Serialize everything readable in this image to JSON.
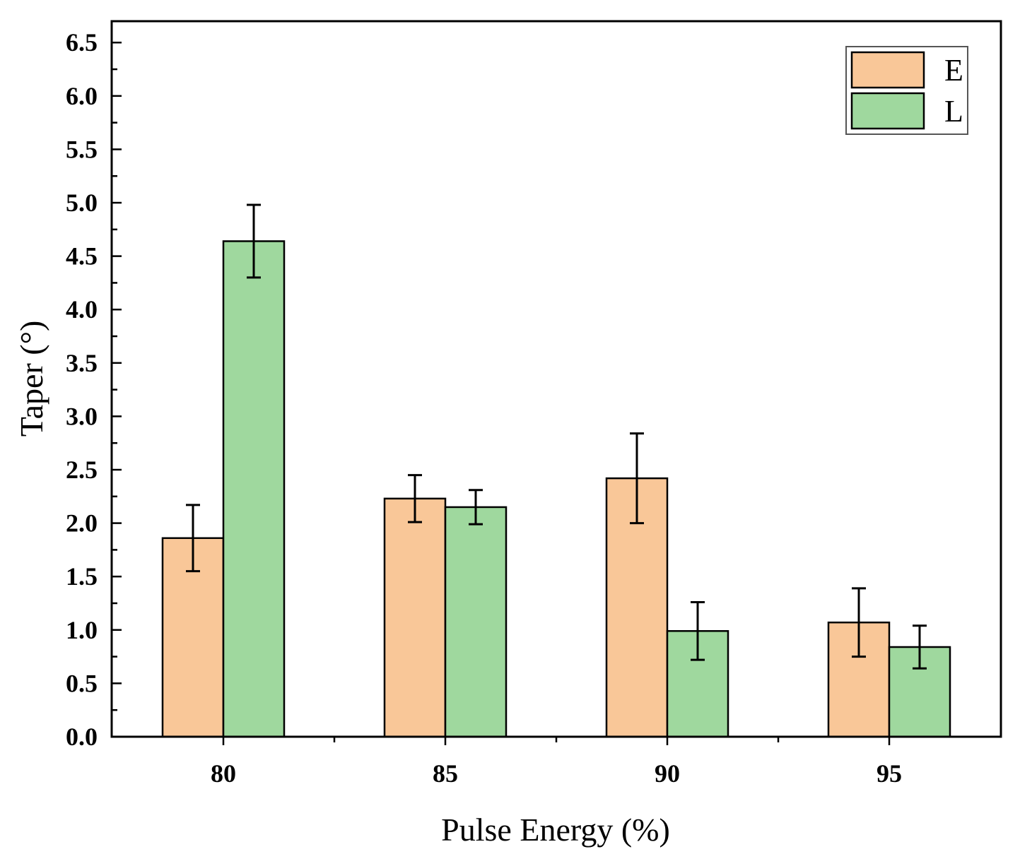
{
  "chart_data": {
    "type": "bar",
    "title": "",
    "xlabel": "Pulse Energy (%)",
    "ylabel": "Taper (°)",
    "categories": [
      "80",
      "85",
      "90",
      "95"
    ],
    "ylim": [
      0,
      6.7
    ],
    "yticks": [
      "0.0",
      "0.5",
      "1.0",
      "1.5",
      "2.0",
      "2.5",
      "3.0",
      "3.5",
      "4.0",
      "4.5",
      "5.0",
      "5.5",
      "6.0",
      "6.5"
    ],
    "legend_position": "top-right",
    "grid": false,
    "series": [
      {
        "name": "E",
        "color": "#f9c798",
        "values": [
          1.86,
          2.23,
          2.42,
          1.07
        ],
        "errors": [
          0.31,
          0.22,
          0.42,
          0.32
        ]
      },
      {
        "name": "L",
        "color": "#9fd89e",
        "values": [
          4.64,
          2.15,
          0.99,
          0.84
        ],
        "errors": [
          0.34,
          0.16,
          0.27,
          0.2
        ]
      }
    ]
  }
}
